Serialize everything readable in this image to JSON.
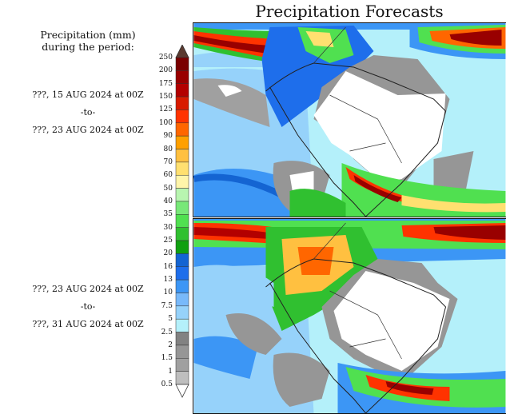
{
  "title": "Precipitation Forecasts",
  "legend": {
    "title_line1": "Precipitation (mm)",
    "title_line2": "during the period:",
    "labels": [
      "250",
      "200",
      "175",
      "150",
      "125",
      "100",
      "90",
      "80",
      "70",
      "60",
      "50",
      "40",
      "35",
      "30",
      "25",
      "20",
      "16",
      "13",
      "10",
      "7.5",
      "5",
      "2.5",
      "2",
      "1.5",
      "1",
      "0.5"
    ],
    "colors": [
      "#7a0000",
      "#990000",
      "#b30000",
      "#d81a00",
      "#ff3300",
      "#ff6600",
      "#ffa000",
      "#ffc040",
      "#ffe070",
      "#fff5aa",
      "#b8f5b0",
      "#78e878",
      "#50e050",
      "#30c030",
      "#10a010",
      "#1464d2",
      "#1e6eeb",
      "#3c96f5",
      "#78b9fa",
      "#96d2fa",
      "#b4f0fa",
      "#828282",
      "#969696",
      "#a0a0a0",
      "#bebebe"
    ],
    "over_color": "#5a3a30",
    "under_color": "#ffffff"
  },
  "periods": [
    {
      "start": "???, 15 AUG 2024 at 00Z",
      "sep": "-to-",
      "end": "???, 23 AUG 2024 at 00Z"
    },
    {
      "start": "???, 23 AUG 2024 at 00Z",
      "sep": "-to-",
      "end": "???, 31 AUG 2024 at 00Z"
    }
  ]
}
